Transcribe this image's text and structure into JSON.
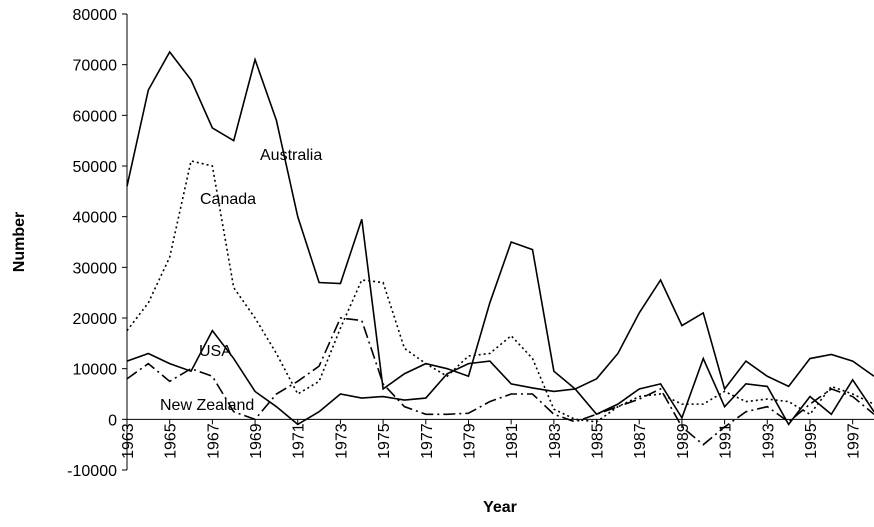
{
  "chart_data": {
    "type": "line",
    "xlabel": "Year",
    "ylabel": "Number",
    "x": [
      1963,
      1964,
      1965,
      1966,
      1967,
      1968,
      1969,
      1970,
      1971,
      1972,
      1973,
      1974,
      1975,
      1976,
      1977,
      1978,
      1979,
      1980,
      1981,
      1982,
      1983,
      1984,
      1985,
      1986,
      1987,
      1988,
      1989,
      1990,
      1991,
      1992,
      1993,
      1994,
      1995,
      1996,
      1997,
      1998
    ],
    "series": [
      {
        "name": "Australia",
        "color": "#000000",
        "dash": "none",
        "values": [
          46000,
          65000,
          72500,
          67000,
          57500,
          55000,
          71000,
          59000,
          40000,
          27000,
          26800,
          39500,
          6000,
          9000,
          11000,
          10000,
          8500,
          23000,
          35000,
          33500,
          9500,
          6000,
          8000,
          13000,
          21000,
          27500,
          18500,
          21000,
          6000,
          11500,
          8500,
          6500,
          12000,
          12800,
          11500,
          8500
        ]
      },
      {
        "name": "Canada",
        "color": "#000000",
        "dash": "2 3",
        "values": [
          17500,
          23000,
          32000,
          51000,
          50000,
          26000,
          20000,
          13000,
          5000,
          7500,
          18000,
          27500,
          27000,
          14000,
          11000,
          8500,
          12500,
          13000,
          16500,
          12000,
          2000,
          0,
          -500,
          2500,
          4500,
          5000,
          3000,
          3000,
          5500,
          3500,
          4000,
          3500,
          1000,
          6500,
          5000,
          3000
        ]
      },
      {
        "name": "USA",
        "color": "#000000",
        "dash": "none",
        "values": [
          11500,
          13000,
          11000,
          9500,
          17500,
          12000,
          5500,
          2500,
          -1000,
          1500,
          5000,
          4200,
          4500,
          3800,
          4200,
          9000,
          11000,
          11500,
          7000,
          6200,
          5500,
          6000,
          1000,
          3000,
          6000,
          7000,
          300,
          12000,
          2500,
          7000,
          6500,
          -1000,
          4500,
          1000,
          7800,
          1500
        ]
      },
      {
        "name": "New Zealand",
        "color": "#000000",
        "dash": "12 4 2 4",
        "values": [
          8000,
          11000,
          7500,
          10000,
          8500,
          1500,
          0,
          5000,
          7500,
          10500,
          20000,
          19500,
          7000,
          2500,
          1000,
          1000,
          1200,
          3500,
          5000,
          5000,
          1000,
          -500,
          1000,
          2500,
          4000,
          6000,
          -1500,
          -5000,
          -1500,
          1500,
          2500,
          -500,
          3000,
          6000,
          4500,
          1000
        ]
      }
    ],
    "xlim": [
      1963,
      1998
    ],
    "xticks": [
      1963,
      1965,
      1967,
      1969,
      1971,
      1973,
      1975,
      1977,
      1979,
      1981,
      1983,
      1985,
      1987,
      1989,
      1991,
      1993,
      1995,
      1997
    ],
    "ylim": [
      -10000,
      80000
    ],
    "yticks": [
      -10000,
      0,
      10000,
      20000,
      30000,
      40000,
      50000,
      60000,
      70000,
      80000
    ]
  }
}
